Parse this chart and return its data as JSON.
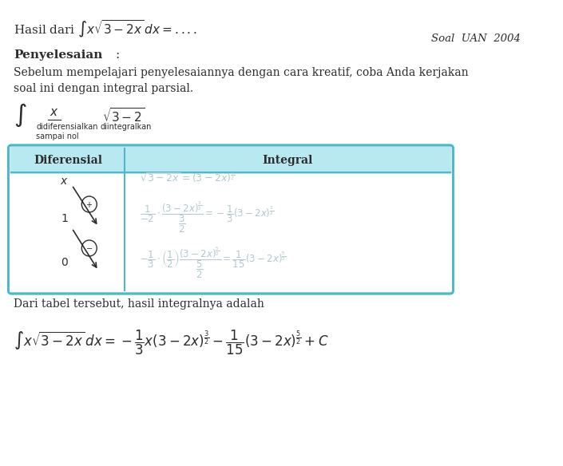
{
  "bg_color": "#ffffff",
  "text_color": "#2c2c2c",
  "cyan_color": "#4db8cc",
  "light_cyan_bg": "#e8f7fa",
  "table_border_color": "#4db8cc",
  "header_bg": "#b8e8f0",
  "faded_color": "#b0c8d0",
  "title_line": "Hasil dari $\\int x\\sqrt{3-2x}\\, dx = ....$",
  "soal_label": "Soal  UAN  2004",
  "penyelesaian_label": "Penyelesaian:",
  "body_text1": "Sebelum mempelajari penyelesaiannya dengan cara kreatif, coba Anda kerjakan",
  "body_text2": "soal ini dengan integral parsial.",
  "diff_label": "didiferensialkan\nsampai nol",
  "int_label": "diintegralkan",
  "dari_text": "Dari tabel tersebut, hasil integralnya adalah"
}
